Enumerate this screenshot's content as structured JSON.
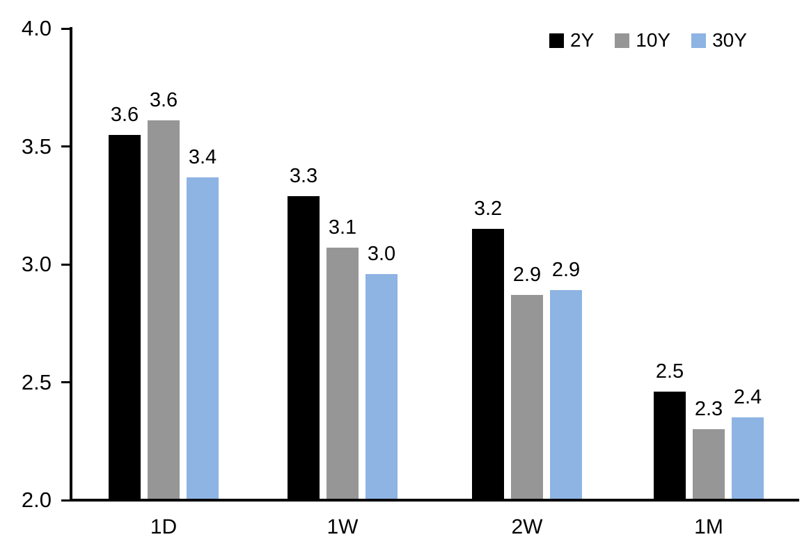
{
  "chart_data": {
    "type": "bar",
    "title": "",
    "xlabel": "",
    "ylabel": "",
    "categories": [
      "1D",
      "1W",
      "2W",
      "1M"
    ],
    "series": [
      {
        "name": "2Y",
        "color": "#000000",
        "values": [
          3.6,
          3.3,
          3.2,
          2.5
        ],
        "labels": [
          "3.6",
          "3.3",
          "3.2",
          "2.5"
        ],
        "bar_values": [
          3.55,
          3.29,
          3.15,
          2.46
        ]
      },
      {
        "name": "10Y",
        "color": "#969696",
        "values": [
          3.6,
          3.1,
          2.9,
          2.3
        ],
        "labels": [
          "3.6",
          "3.1",
          "2.9",
          "2.3"
        ],
        "bar_values": [
          3.61,
          3.07,
          2.87,
          2.3
        ]
      },
      {
        "name": "30Y",
        "color": "#8DB4E2",
        "values": [
          3.4,
          3.0,
          2.9,
          2.4
        ],
        "labels": [
          "3.4",
          "3.0",
          "2.9",
          "2.4"
        ],
        "bar_values": [
          3.37,
          2.96,
          2.89,
          2.35
        ]
      }
    ],
    "y_axis": {
      "min": 2.0,
      "max": 4.0,
      "tick_step": 0.5,
      "tick_labels": [
        "2.0",
        "2.5",
        "3.0",
        "3.5",
        "4.0"
      ]
    },
    "ylim": [
      2.0,
      4.0
    ],
    "grid": false,
    "legend": {
      "position": "top-right",
      "entries": [
        "2Y",
        "10Y",
        "30Y"
      ]
    }
  }
}
